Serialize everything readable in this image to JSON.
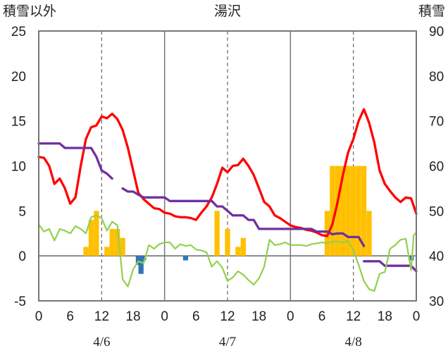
{
  "chart_data": {
    "type": "bar+line",
    "title": "湯沢",
    "left_axis_label": "積雪以外",
    "right_axis_label": "積雪",
    "left_ylim": [
      -5,
      25
    ],
    "left_yticks": [
      -5,
      0,
      5,
      10,
      15,
      20,
      25
    ],
    "right_ylim": [
      30,
      90
    ],
    "right_yticks": [
      30,
      40,
      50,
      60,
      70,
      80,
      90
    ],
    "x_range_hours": [
      0,
      72
    ],
    "x_ticks": [
      {
        "h": 0,
        "label": "0"
      },
      {
        "h": 6,
        "label": "6"
      },
      {
        "h": 12,
        "label": "12"
      },
      {
        "h": 18,
        "label": "18"
      },
      {
        "h": 24,
        "label": "0"
      },
      {
        "h": 30,
        "label": "6"
      },
      {
        "h": 36,
        "label": "12"
      },
      {
        "h": 42,
        "label": "18"
      },
      {
        "h": 48,
        "label": "0"
      },
      {
        "h": 54,
        "label": "6"
      },
      {
        "h": 60,
        "label": "12"
      },
      {
        "h": 66,
        "label": "18"
      },
      {
        "h": 72,
        "label": "0"
      }
    ],
    "dates": [
      {
        "h": 12,
        "label": "4/6"
      },
      {
        "h": 36,
        "label": "4/7"
      },
      {
        "h": 60,
        "label": "4/8"
      }
    ],
    "day_boundaries": [
      24,
      48
    ],
    "noon_lines": [
      12,
      36,
      60
    ],
    "colors": {
      "temperature": "#ff0000",
      "snow_depth": "#7030a0",
      "other_line": "#92d050",
      "precip_bars": "#ffc000",
      "negative_bars": "#2e75b6"
    },
    "series": [
      {
        "axis": "left",
        "kind": "line",
        "color_key": "temperature",
        "points": [
          [
            0,
            11.0
          ],
          [
            1,
            10.9
          ],
          [
            2,
            10.0
          ],
          [
            3,
            8.0
          ],
          [
            4,
            8.6
          ],
          [
            5,
            7.5
          ],
          [
            6,
            5.8
          ],
          [
            7,
            6.5
          ],
          [
            8,
            10.0
          ],
          [
            9,
            13.0
          ],
          [
            10,
            14.3
          ],
          [
            11,
            14.5
          ],
          [
            12,
            15.5
          ],
          [
            13,
            15.3
          ],
          [
            14,
            15.8
          ],
          [
            15,
            15.2
          ],
          [
            16,
            14.0
          ],
          [
            17,
            12.0
          ],
          [
            18,
            9.5
          ],
          [
            19,
            7.0
          ],
          [
            20,
            6.3
          ],
          [
            21,
            5.8
          ],
          [
            22,
            5.3
          ],
          [
            23,
            5.2
          ],
          [
            24,
            4.8
          ],
          [
            25,
            4.7
          ],
          [
            26,
            4.4
          ],
          [
            27,
            4.3
          ],
          [
            28,
            4.3
          ],
          [
            29,
            4.2
          ],
          [
            30,
            4.0
          ],
          [
            31,
            4.8
          ],
          [
            32,
            5.5
          ],
          [
            33,
            6.5
          ],
          [
            34,
            8.0
          ],
          [
            35,
            9.8
          ],
          [
            36,
            9.3
          ],
          [
            37,
            10.0
          ],
          [
            38,
            10.1
          ],
          [
            39,
            10.8
          ],
          [
            40,
            10.0
          ],
          [
            41,
            9.0
          ],
          [
            42,
            7.5
          ],
          [
            43,
            6.0
          ],
          [
            44,
            5.5
          ],
          [
            45,
            4.5
          ],
          [
            46,
            4.2
          ],
          [
            47,
            3.8
          ],
          [
            48,
            3.4
          ],
          [
            49,
            3.2
          ],
          [
            50,
            3.1
          ],
          [
            51,
            2.9
          ],
          [
            52,
            2.8
          ],
          [
            53,
            2.6
          ],
          [
            54,
            2.3
          ],
          [
            55,
            2.2
          ],
          [
            56,
            3.5
          ],
          [
            57,
            6.0
          ],
          [
            58,
            9.0
          ],
          [
            59,
            11.5
          ],
          [
            60,
            13.0
          ],
          [
            61,
            15.0
          ],
          [
            62,
            16.3
          ],
          [
            63,
            14.8
          ],
          [
            64,
            12.6
          ],
          [
            65,
            9.5
          ],
          [
            66,
            8.0
          ],
          [
            67,
            7.2
          ],
          [
            68,
            6.5
          ],
          [
            69,
            6.0
          ],
          [
            70,
            6.5
          ],
          [
            71,
            6.4
          ],
          [
            72,
            4.7
          ]
        ]
      },
      {
        "axis": "right",
        "kind": "line",
        "color_key": "snow_depth",
        "segments": [
          [
            [
              0,
              65
            ],
            [
              4,
              65
            ],
            [
              5,
              64
            ],
            [
              10,
              64
            ],
            [
              11,
              62
            ],
            [
              12,
              59
            ],
            [
              13,
              58.3
            ],
            [
              14,
              57.2
            ]
          ],
          [
            [
              16,
              55.0
            ],
            [
              17,
              54.3
            ],
            [
              18,
              54.3
            ],
            [
              19,
              53.6
            ],
            [
              20,
              53
            ],
            [
              24,
              53
            ],
            [
              25,
              52.2
            ],
            [
              33,
              52.2
            ],
            [
              34,
              51
            ],
            [
              35,
              51
            ],
            [
              36,
              50
            ],
            [
              37,
              49
            ],
            [
              39,
              49
            ],
            [
              40,
              48
            ],
            [
              41,
              48
            ],
            [
              42,
              46
            ],
            [
              52,
              46
            ],
            [
              53,
              45.4
            ],
            [
              55,
              45.4
            ],
            [
              56,
              44.8
            ],
            [
              57,
              45
            ],
            [
              58,
              45
            ],
            [
              59,
              44.2
            ],
            [
              60,
              44.2
            ],
            [
              61,
              44.2
            ],
            [
              62,
              42.2
            ]
          ],
          [
            [
              62,
              38.8
            ],
            [
              65,
              38.8
            ],
            [
              66,
              37.8
            ],
            [
              69,
              37.8
            ],
            [
              70,
              37.8
            ],
            [
              71,
              37.8
            ],
            [
              72,
              36.6
            ]
          ]
        ]
      },
      {
        "axis": "left",
        "kind": "line",
        "color_key": "other_line",
        "points": [
          [
            0,
            3.5
          ],
          [
            1,
            2.7
          ],
          [
            2,
            3.0
          ],
          [
            3,
            1.7
          ],
          [
            4,
            3.0
          ],
          [
            5,
            2.8
          ],
          [
            6,
            2.5
          ],
          [
            7,
            3.3
          ],
          [
            8,
            3.0
          ],
          [
            9,
            2.5
          ],
          [
            10,
            4.3
          ],
          [
            11,
            4.5
          ],
          [
            12,
            4.2
          ],
          [
            13,
            2.8
          ],
          [
            14,
            3.8
          ],
          [
            15,
            3.4
          ],
          [
            16,
            -2.6
          ],
          [
            17,
            -3.4
          ],
          [
            18,
            -1.5
          ],
          [
            19,
            -0.6
          ],
          [
            20,
            -0.8
          ],
          [
            21,
            1.2
          ],
          [
            22,
            0.8
          ],
          [
            23,
            1.3
          ],
          [
            24,
            1.5
          ],
          [
            25,
            1.5
          ],
          [
            26,
            0.8
          ],
          [
            27,
            1.3
          ],
          [
            28,
            1.1
          ],
          [
            29,
            1.2
          ],
          [
            30,
            0.7
          ],
          [
            31,
            0.6
          ],
          [
            32,
            0.4
          ],
          [
            33,
            -1.2
          ],
          [
            34,
            -0.6
          ],
          [
            35,
            -1.3
          ],
          [
            36,
            -2.8
          ],
          [
            37,
            -2.4
          ],
          [
            38,
            -1.7
          ],
          [
            39,
            -2.1
          ],
          [
            40,
            -2.7
          ],
          [
            41,
            -3.2
          ],
          [
            42,
            -2.5
          ],
          [
            43,
            -1.2
          ],
          [
            44,
            1.8
          ],
          [
            45,
            1.2
          ],
          [
            46,
            1.3
          ],
          [
            47,
            1.5
          ],
          [
            48,
            1.2
          ],
          [
            49,
            1.2
          ],
          [
            50,
            1.2
          ],
          [
            51,
            1.1
          ],
          [
            52,
            1.3
          ],
          [
            53,
            1.4
          ],
          [
            54,
            1.5
          ],
          [
            55,
            1.4
          ],
          [
            56,
            1.6
          ],
          [
            57,
            1.6
          ],
          [
            58,
            1.5
          ],
          [
            59,
            1.7
          ],
          [
            60,
            0.6
          ],
          [
            61,
            -1.0
          ],
          [
            62,
            -2.8
          ],
          [
            63,
            -3.7
          ],
          [
            64,
            -3.9
          ],
          [
            65,
            -2.0
          ],
          [
            66,
            -1.8
          ],
          [
            67,
            0.8
          ],
          [
            68,
            1.2
          ],
          [
            69,
            1.8
          ],
          [
            70,
            1.9
          ],
          [
            71,
            -1.6
          ],
          [
            71.5,
            2.3
          ],
          [
            72,
            2.6
          ]
        ]
      },
      {
        "axis": "left",
        "kind": "bar",
        "color_key": "precip_bars",
        "bars": [
          [
            9,
            1
          ],
          [
            10,
            4
          ],
          [
            11,
            5
          ],
          [
            13,
            1
          ],
          [
            14,
            3
          ],
          [
            15,
            3
          ],
          [
            16,
            2
          ],
          [
            34,
            5
          ],
          [
            36,
            3
          ],
          [
            38,
            1
          ],
          [
            39,
            2
          ],
          [
            55,
            5
          ],
          [
            56,
            10
          ],
          [
            57,
            10
          ],
          [
            58,
            10
          ],
          [
            59,
            10
          ],
          [
            60,
            10
          ],
          [
            61,
            10
          ],
          [
            62,
            10
          ],
          [
            63,
            5
          ]
        ]
      },
      {
        "axis": "left",
        "kind": "bar",
        "color_key": "negative_bars",
        "bars": [
          [
            19,
            -1
          ],
          [
            19.5,
            -2
          ],
          [
            20,
            -0.5
          ],
          [
            28,
            -0.5
          ],
          [
            71,
            -0.5
          ]
        ]
      }
    ]
  }
}
